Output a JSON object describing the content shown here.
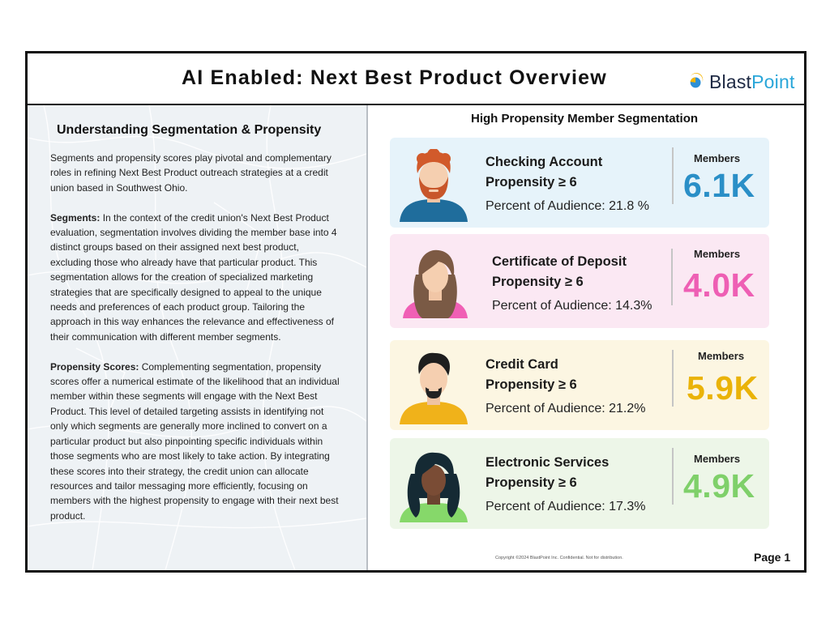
{
  "header": {
    "title": "AI Enabled: Next Best Product Overview",
    "logo_text_a": "Blast",
    "logo_text_b": "Point"
  },
  "left_panel": {
    "heading": "Understanding Segmentation & Propensity",
    "intro": "Segments and propensity scores play pivotal and complementary roles in refining Next Best Product outreach strategies at a credit union based in Southwest Ohio.",
    "segments_label": "Segments:",
    "segments_text": "In the context of the credit union's Next Best Product evaluation, segmentation involves dividing the member base into 4 distinct groups based on their assigned next best product, excluding those who already have that particular product. This segmentation allows for the creation of specialized marketing strategies that are specifically designed to appeal to the unique needs and preferences of each product group. Tailoring the approach in this way enhances the relevance and effectiveness of their communication with different member segments.",
    "propensity_label": "Propensity Scores:",
    "propensity_text": "Complementing segmentation, propensity scores offer a numerical estimate of the likelihood that an individual member within these segments will engage with the Next Best Product. This level of detailed targeting assists in identifying not only which segments are generally more inclined to convert on a particular product but also pinpointing specific individuals within those segments who are most likely to take action. By integrating these scores into their strategy, the credit union can allocate resources and tailor messaging more efficiently, focusing on members with the highest propensity to engage with their next best product."
  },
  "right_panel": {
    "heading": "High Propensity Member Segmentation",
    "cards": [
      {
        "name": "Checking Account",
        "propensity": "Propensity ≥ 6",
        "percent": "Percent of Audience: 21.8 %",
        "members_label": "Members",
        "value": "6.1K",
        "bg": "#e6f3fa",
        "value_color": "#2a8fc7",
        "avatar_icon": "man-red-hair-beard-icon"
      },
      {
        "name": "Certificate of Deposit",
        "propensity": "Propensity ≥ 6",
        "percent": "Percent of Audience: 14.3%",
        "members_label": "Members",
        "value": "4.0K",
        "bg": "#fbe8f3",
        "value_color": "#ee5fb4",
        "avatar_icon": "woman-long-hair-icon"
      },
      {
        "name": "Credit Card",
        "propensity": "Propensity ≥ 6",
        "percent": "Percent of Audience: 21.2%",
        "members_label": "Members",
        "value": "5.9K",
        "bg": "#fcf6e2",
        "value_color": "#eab308",
        "avatar_icon": "man-dark-hair-goatee-icon"
      },
      {
        "name": "Electronic Services",
        "propensity": "Propensity ≥ 6",
        "percent": "Percent of Audience: 17.3%",
        "members_label": "Members",
        "value": "4.9K",
        "bg": "#edf6e8",
        "value_color": "#7fd06a",
        "avatar_icon": "woman-curly-hair-icon"
      }
    ]
  },
  "footer": {
    "copyright": "Copyright ©2024 BlastPoint Inc.  Confidential.  Not for distribution.",
    "page": "Page 1"
  }
}
